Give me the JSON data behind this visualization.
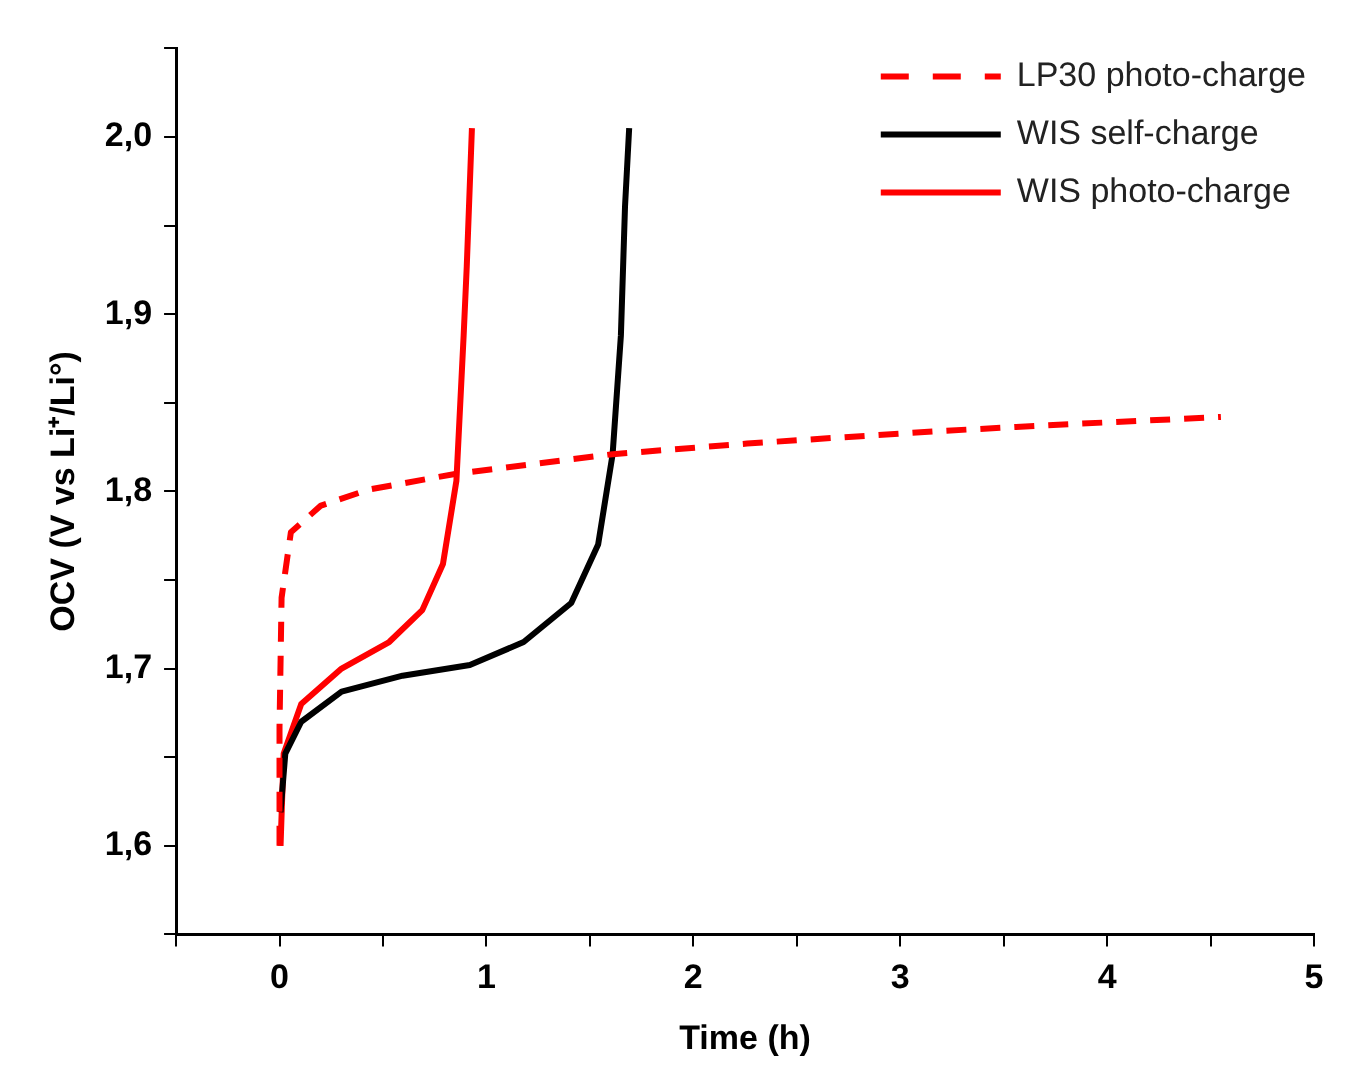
{
  "chart_data": {
    "type": "line",
    "xlabel": "Time (h)",
    "ylabel": "OCV (V vs Li⁺/Li°)",
    "xlim": [
      -0.5,
      5
    ],
    "ylim": [
      1.55,
      2.05
    ],
    "xticks": [
      {
        "value": -0.5,
        "label": null
      },
      0,
      {
        "value": 0.5,
        "label": null
      },
      1,
      {
        "value": 1.5,
        "label": null
      },
      2,
      {
        "value": 2.5,
        "label": null
      },
      3,
      {
        "value": 3.5,
        "label": null
      },
      4,
      {
        "value": 4.5,
        "label": null
      },
      5
    ],
    "yticks": [
      {
        "value": 1.55,
        "label": null
      },
      {
        "value": 1.6,
        "label": "1,6"
      },
      {
        "value": 1.65,
        "label": null
      },
      {
        "value": 1.7,
        "label": "1,7"
      },
      {
        "value": 1.75,
        "label": null
      },
      {
        "value": 1.8,
        "label": "1,8"
      },
      {
        "value": 1.85,
        "label": null
      },
      {
        "value": 1.9,
        "label": "1,9"
      },
      {
        "value": 1.95,
        "label": null
      },
      {
        "value": 2.0,
        "label": "2,0"
      },
      {
        "value": 2.05,
        "label": null
      }
    ],
    "grid": false,
    "legend": "top right",
    "marker": "none",
    "series": [
      {
        "name": "LP30 photo-charge",
        "color": "#ff0000",
        "line_style": "dashed",
        "x": [
          0,
          0,
          0.01,
          0.055,
          0.2,
          0.43,
          0.855,
          1.61,
          2.26,
          3.18,
          3.83,
          4.55
        ],
        "values": [
          1.6,
          1.667,
          1.74,
          1.777,
          1.792,
          1.801,
          1.81,
          1.821,
          1.827,
          1.834,
          1.838,
          1.842
        ]
      },
      {
        "name": "WIS self-charge",
        "color": "#000000",
        "line_style": "solid",
        "x": [
          0.005,
          0.028,
          0.105,
          0.3,
          0.595,
          0.92,
          1.18,
          1.41,
          1.54,
          1.61,
          1.65,
          1.67,
          1.69
        ],
        "values": [
          1.619,
          1.652,
          1.67,
          1.687,
          1.696,
          1.702,
          1.715,
          1.737,
          1.77,
          1.821,
          1.888,
          1.961,
          2.005
        ]
      },
      {
        "name": "WIS photo-charge",
        "color": "#ff0000",
        "line_style": "solid",
        "x": [
          0.005,
          0.02,
          0.105,
          0.3,
          0.53,
          0.69,
          0.79,
          0.855,
          0.89,
          0.905,
          0.93
        ],
        "values": [
          1.6,
          1.652,
          1.68,
          1.7,
          1.715,
          1.733,
          1.759,
          1.806,
          1.888,
          1.927,
          2.005
        ]
      }
    ]
  }
}
